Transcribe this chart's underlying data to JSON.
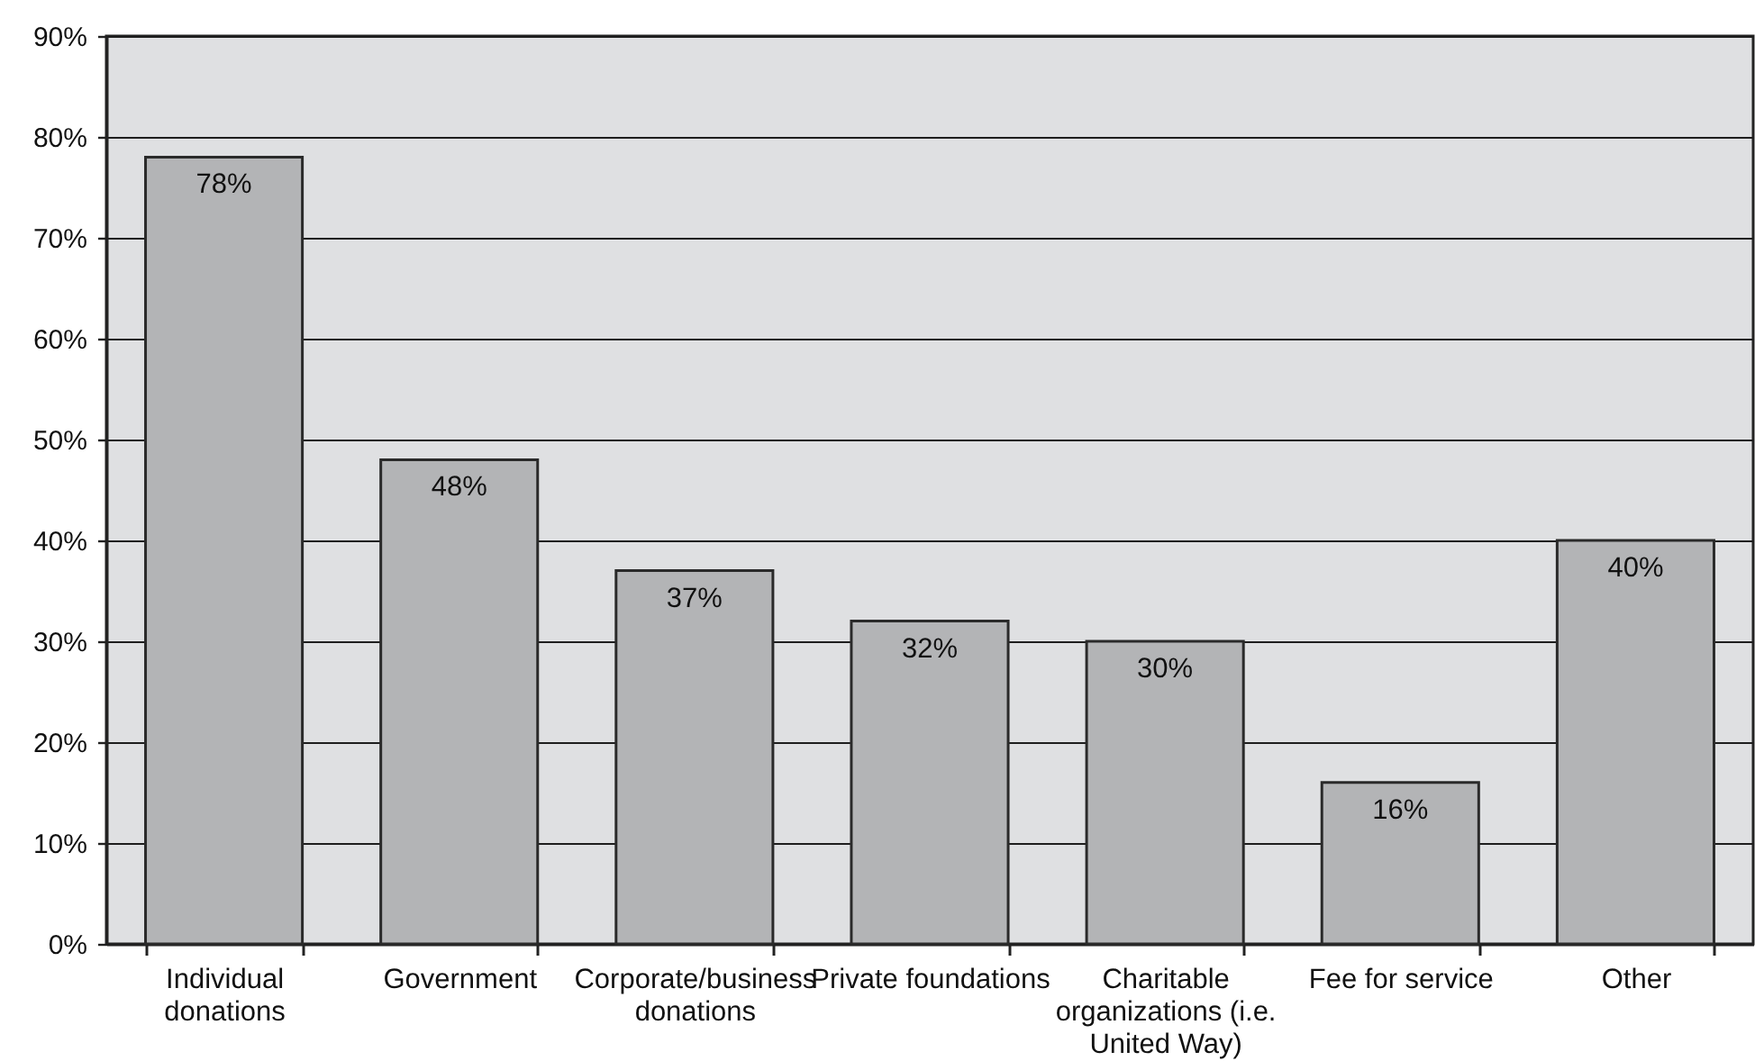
{
  "chart_data": {
    "type": "bar",
    "categories": [
      "Individual donations",
      "Government",
      "Corporate/business donations",
      "Private foundations",
      "Charitable organizations (i.e. United Way)",
      "Fee for service",
      "Other"
    ],
    "values": [
      78,
      48,
      37,
      32,
      30,
      16,
      40
    ],
    "value_labels": [
      "78%",
      "48%",
      "37%",
      "32%",
      "30%",
      "16%",
      "40%"
    ],
    "color": "#b3b4b6",
    "ylim": [
      0,
      90
    ],
    "yticks": [
      {
        "value": 0,
        "label": "0%"
      },
      {
        "value": 10,
        "label": "10%"
      },
      {
        "value": 20,
        "label": "20%"
      },
      {
        "value": 30,
        "label": "30%"
      },
      {
        "value": 40,
        "label": "40%"
      },
      {
        "value": 50,
        "label": "50%"
      },
      {
        "value": 60,
        "label": "60%"
      },
      {
        "value": 70,
        "label": "70%"
      },
      {
        "value": 80,
        "label": "80%"
      },
      {
        "value": 90,
        "label": "90%"
      }
    ],
    "grid": "y"
  }
}
